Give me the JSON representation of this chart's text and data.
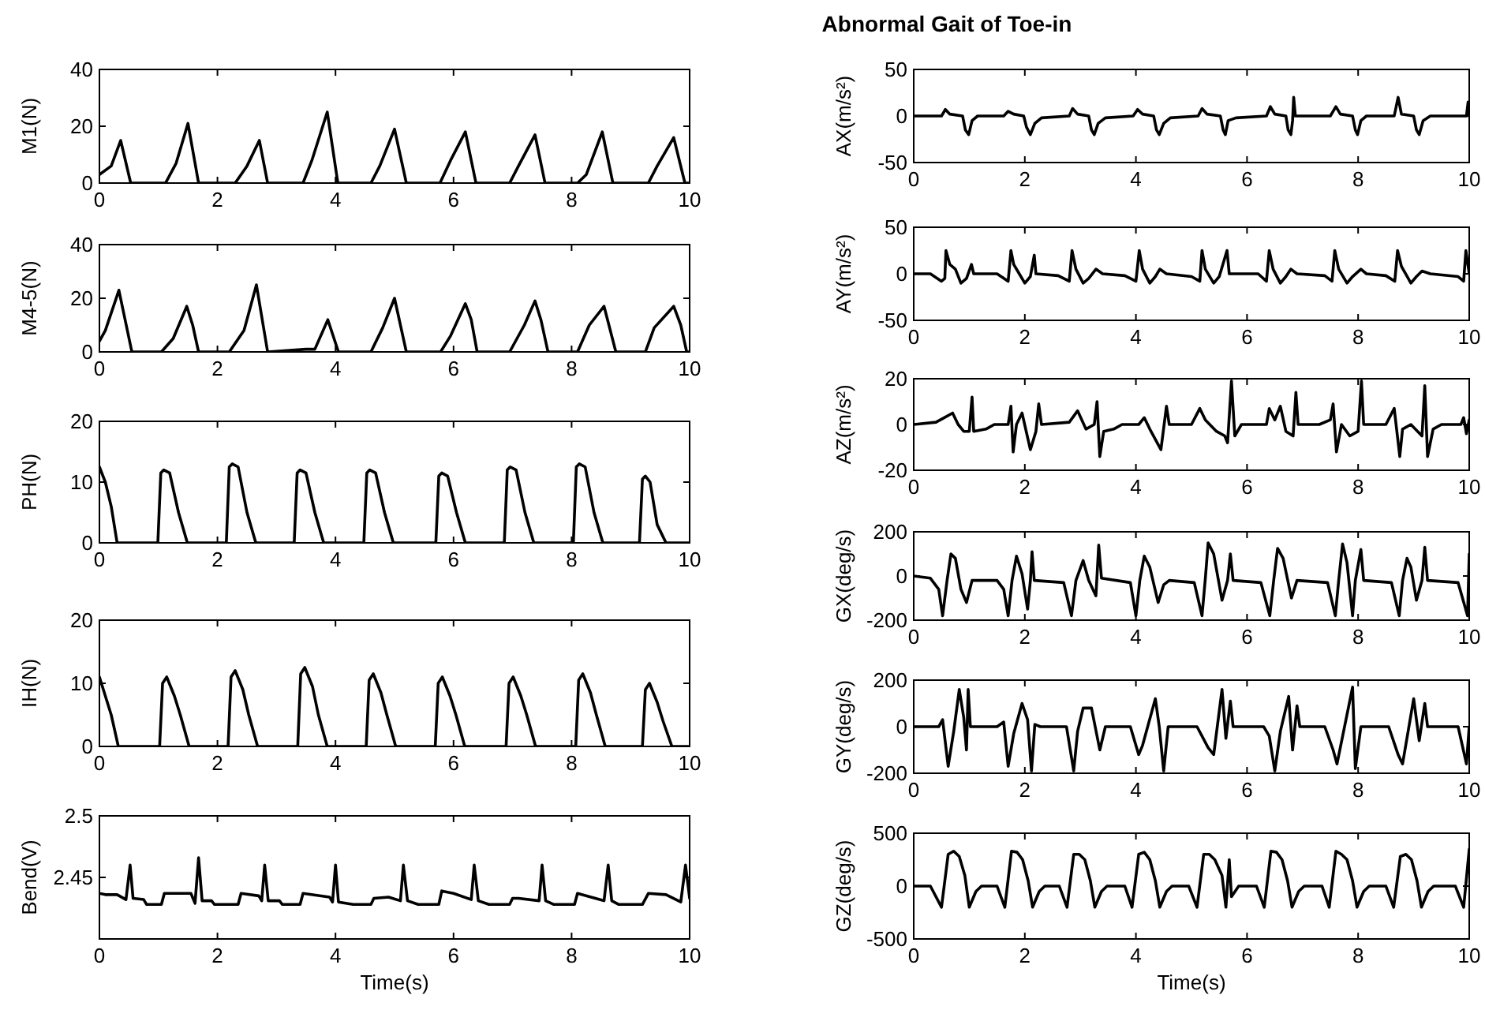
{
  "chart_data": [
    {
      "type": "line",
      "ylabel": "M1(N)",
      "xlim": [
        0,
        10
      ],
      "xticks": [
        0,
        2,
        4,
        6,
        8,
        10
      ],
      "ylim": [
        0,
        40
      ],
      "yticks": [
        0,
        20,
        40
      ],
      "color": "#000000",
      "x": [
        0,
        0.2,
        0.36,
        0.53,
        1.12,
        1.3,
        1.5,
        1.68,
        2.3,
        2.5,
        2.71,
        2.85,
        3.45,
        3.6,
        3.86,
        4.04,
        4.6,
        4.75,
        5.0,
        5.2,
        5.77,
        5.95,
        6.2,
        6.38,
        6.95,
        7.1,
        7.38,
        7.55,
        8.1,
        8.25,
        8.52,
        8.7,
        9.3,
        9.45,
        9.73,
        9.92,
        10
      ],
      "values": [
        3,
        6,
        15,
        0,
        0,
        7,
        21,
        0,
        0,
        6,
        15,
        0,
        0,
        8,
        25,
        0,
        0,
        6,
        19,
        0,
        0,
        8,
        18,
        0,
        0,
        6,
        17,
        0,
        0,
        3,
        18,
        0,
        0,
        6,
        16,
        0,
        0
      ]
    },
    {
      "type": "line",
      "ylabel": "M4-5(N)",
      "xlim": [
        0,
        10
      ],
      "xticks": [
        0,
        2,
        4,
        6,
        8,
        10
      ],
      "ylim": [
        0,
        40
      ],
      "yticks": [
        0,
        20,
        40
      ],
      "color": "#000000",
      "x": [
        0,
        0.1,
        0.33,
        0.55,
        1.05,
        1.25,
        1.48,
        1.58,
        1.68,
        2.2,
        2.45,
        2.66,
        2.85,
        3.5,
        3.65,
        3.87,
        4.05,
        4.6,
        4.8,
        5.0,
        5.2,
        5.78,
        5.95,
        6.2,
        6.3,
        6.4,
        6.95,
        7.2,
        7.38,
        7.48,
        7.6,
        8.1,
        8.3,
        8.55,
        8.75,
        9.25,
        9.4,
        9.73,
        9.85,
        9.95,
        10
      ],
      "values": [
        4,
        8,
        23,
        0,
        0,
        5,
        17,
        10,
        0,
        0,
        8,
        25,
        0,
        1,
        1,
        12,
        0,
        0,
        9,
        20,
        0,
        0,
        6,
        18,
        12,
        0,
        0,
        10,
        19,
        12,
        0,
        0,
        10,
        17,
        0,
        0,
        9,
        17,
        10,
        0,
        0
      ]
    },
    {
      "type": "line",
      "ylabel": "PH(N)",
      "xlim": [
        0,
        10
      ],
      "xticks": [
        0,
        2,
        4,
        6,
        8,
        10
      ],
      "ylim": [
        0,
        20
      ],
      "yticks": [
        0,
        10,
        20
      ],
      "color": "#000000",
      "x": [
        0,
        0.1,
        0.2,
        0.3,
        0.99,
        1.04,
        1.09,
        1.19,
        1.34,
        1.49,
        2.15,
        2.2,
        2.25,
        2.35,
        2.5,
        2.65,
        3.3,
        3.35,
        3.4,
        3.5,
        3.65,
        3.8,
        4.48,
        4.53,
        4.58,
        4.68,
        4.83,
        4.98,
        5.7,
        5.75,
        5.8,
        5.9,
        6.05,
        6.2,
        6.86,
        6.91,
        6.96,
        7.06,
        7.21,
        7.36,
        8.03,
        8.08,
        8.13,
        8.23,
        8.38,
        8.53,
        9.15,
        9.2,
        9.25,
        9.33,
        9.45,
        9.6,
        10
      ],
      "values": [
        12.5,
        10,
        6,
        0,
        0,
        11.5,
        12,
        11.5,
        5,
        0,
        0,
        12.5,
        13,
        12.5,
        5,
        0,
        0,
        11.5,
        12,
        11.5,
        5,
        0,
        0,
        11.5,
        12,
        11.5,
        5,
        0,
        0,
        11,
        11.5,
        11,
        5,
        0,
        0,
        12,
        12.5,
        12,
        5,
        0,
        0,
        12.5,
        13,
        12.5,
        5,
        0,
        0,
        10.5,
        11,
        10,
        3,
        0,
        0
      ]
    },
    {
      "type": "line",
      "ylabel": "IH(N)",
      "xlim": [
        0,
        10
      ],
      "xticks": [
        0,
        2,
        4,
        6,
        8,
        10
      ],
      "ylim": [
        0,
        20
      ],
      "yticks": [
        0,
        10,
        20
      ],
      "color": "#000000",
      "x": [
        0,
        0.1,
        0.2,
        0.32,
        1.02,
        1.07,
        1.14,
        1.27,
        1.37,
        1.52,
        2.18,
        2.23,
        2.3,
        2.43,
        2.53,
        2.68,
        3.36,
        3.41,
        3.48,
        3.61,
        3.71,
        3.86,
        4.52,
        4.57,
        4.64,
        4.77,
        4.87,
        5.02,
        5.69,
        5.74,
        5.81,
        5.94,
        6.04,
        6.19,
        6.89,
        6.94,
        7.01,
        7.14,
        7.24,
        7.39,
        8.07,
        8.12,
        8.19,
        8.32,
        8.42,
        8.57,
        9.2,
        9.25,
        9.32,
        9.45,
        9.55,
        9.7,
        10
      ],
      "values": [
        11,
        8,
        5,
        0,
        0,
        10,
        11,
        8,
        5,
        0,
        0,
        11,
        12,
        9,
        5,
        0,
        0,
        11.5,
        12.5,
        9.5,
        5,
        0,
        0,
        10.5,
        11.5,
        8.5,
        5,
        0,
        0,
        10,
        11,
        8,
        5,
        0,
        0,
        10,
        11,
        8,
        5,
        0,
        0,
        10.5,
        11.5,
        8.5,
        5,
        0,
        0,
        9,
        10,
        7,
        4,
        0,
        0
      ]
    },
    {
      "type": "line",
      "ylabel": "Bend(V)",
      "xlabel": "Time(s)",
      "xlim": [
        0,
        10
      ],
      "xticks": [
        0,
        2,
        4,
        6,
        8,
        10
      ],
      "ylim": [
        2.4,
        2.5
      ],
      "yticks": [
        2.45,
        2.5
      ],
      "color": "#000000",
      "x": [
        0,
        0.1,
        0.3,
        0.45,
        0.52,
        0.57,
        0.75,
        0.8,
        1.05,
        1.1,
        1.55,
        1.62,
        1.68,
        1.74,
        1.9,
        1.95,
        2.35,
        2.4,
        2.7,
        2.75,
        2.8,
        2.86,
        3.05,
        3.1,
        3.4,
        3.45,
        3.9,
        3.95,
        4.0,
        4.05,
        4.3,
        4.6,
        4.65,
        4.9,
        5.1,
        5.15,
        5.22,
        5.4,
        5.75,
        5.8,
        6.0,
        6.3,
        6.35,
        6.42,
        6.6,
        6.95,
        7.0,
        7.1,
        7.45,
        7.5,
        7.56,
        7.7,
        8.05,
        8.1,
        8.55,
        8.62,
        8.68,
        8.8,
        9.2,
        9.3,
        9.6,
        9.85,
        9.93,
        10
      ],
      "values": [
        2.437,
        2.436,
        2.436,
        2.432,
        2.46,
        2.433,
        2.432,
        2.428,
        2.428,
        2.437,
        2.437,
        2.429,
        2.466,
        2.431,
        2.431,
        2.428,
        2.428,
        2.437,
        2.435,
        2.431,
        2.46,
        2.431,
        2.431,
        2.428,
        2.428,
        2.437,
        2.434,
        2.43,
        2.46,
        2.43,
        2.428,
        2.428,
        2.433,
        2.434,
        2.431,
        2.46,
        2.431,
        2.428,
        2.428,
        2.439,
        2.437,
        2.432,
        2.46,
        2.431,
        2.428,
        2.428,
        2.433,
        2.433,
        2.431,
        2.46,
        2.431,
        2.428,
        2.428,
        2.437,
        2.431,
        2.46,
        2.431,
        2.428,
        2.428,
        2.437,
        2.436,
        2.43,
        2.46,
        2.433
      ]
    },
    {
      "type": "line",
      "title": "Abnormal Gait of Toe-in",
      "ylabel": "AX(m/s²)",
      "xlim": [
        0,
        10
      ],
      "xticks": [
        0,
        2,
        4,
        6,
        8,
        10
      ],
      "ylim": [
        -50,
        50
      ],
      "yticks": [
        -50,
        0,
        50
      ],
      "color": "#000000",
      "x": [
        0,
        0.5,
        0.57,
        0.65,
        0.88,
        0.93,
        0.99,
        1.05,
        1.15,
        1.62,
        1.7,
        1.8,
        1.98,
        2.03,
        2.1,
        2.18,
        2.3,
        2.8,
        2.86,
        2.95,
        3.15,
        3.2,
        3.25,
        3.32,
        3.45,
        3.95,
        4.03,
        4.12,
        4.32,
        4.37,
        4.42,
        4.5,
        4.62,
        5.12,
        5.19,
        5.28,
        5.52,
        5.57,
        5.61,
        5.66,
        5.8,
        6.35,
        6.42,
        6.5,
        6.7,
        6.74,
        6.79,
        6.82,
        6.84,
        6.87,
        7.5,
        7.6,
        7.68,
        7.9,
        7.95,
        7.99,
        8.05,
        8.15,
        8.65,
        8.72,
        8.78,
        9.0,
        9.05,
        9.1,
        9.17,
        9.3,
        9.95,
        9.98,
        10
      ],
      "values": [
        0,
        0,
        7,
        2,
        0,
        -15,
        -20,
        -5,
        0,
        0,
        5,
        2,
        0,
        -12,
        -20,
        -8,
        -2,
        0,
        8,
        2,
        0,
        -15,
        -20,
        -8,
        -2,
        0,
        7,
        2,
        0,
        -15,
        -20,
        -8,
        -2,
        0,
        8,
        2,
        0,
        -15,
        -20,
        -5,
        -2,
        0,
        10,
        2,
        0,
        -15,
        -20,
        -5,
        20,
        0,
        0,
        10,
        2,
        0,
        -15,
        -20,
        -5,
        0,
        0,
        20,
        2,
        0,
        -15,
        -20,
        -5,
        0,
        0,
        15,
        0
      ]
    },
    {
      "type": "line",
      "ylabel": "AY(m/s²)",
      "xlim": [
        0,
        10
      ],
      "xticks": [
        0,
        2,
        4,
        6,
        8,
        10
      ],
      "ylim": [
        -50,
        50
      ],
      "yticks": [
        -50,
        0,
        50
      ],
      "color": "#000000",
      "x": [
        0,
        0.3,
        0.5,
        0.56,
        0.58,
        0.65,
        0.75,
        0.85,
        0.95,
        1.04,
        1.08,
        1.5,
        1.7,
        1.75,
        1.8,
        1.9,
        2.0,
        2.1,
        2.17,
        2.2,
        2.6,
        2.8,
        2.85,
        2.92,
        3.05,
        3.15,
        3.28,
        3.4,
        3.8,
        4.0,
        4.06,
        4.12,
        4.25,
        4.35,
        4.43,
        4.55,
        5.0,
        5.15,
        5.19,
        5.25,
        5.4,
        5.5,
        5.64,
        5.68,
        6.2,
        6.35,
        6.4,
        6.47,
        6.6,
        6.7,
        6.79,
        6.9,
        7.4,
        7.53,
        7.58,
        7.65,
        7.8,
        7.9,
        8.05,
        8.15,
        8.5,
        8.66,
        8.71,
        8.78,
        8.95,
        9.05,
        9.15,
        9.3,
        9.8,
        9.9,
        9.94,
        10
      ],
      "values": [
        0,
        0,
        -8,
        -5,
        25,
        10,
        5,
        -10,
        -5,
        10,
        0,
        0,
        -8,
        25,
        10,
        0,
        -10,
        -3,
        20,
        0,
        -2,
        -8,
        25,
        5,
        -10,
        -5,
        5,
        0,
        -2,
        -8,
        25,
        5,
        -10,
        -3,
        5,
        0,
        -3,
        -8,
        25,
        5,
        -10,
        -3,
        25,
        0,
        0,
        -8,
        25,
        5,
        -10,
        -3,
        5,
        0,
        -2,
        -8,
        25,
        5,
        -10,
        -3,
        5,
        0,
        -2,
        -8,
        25,
        8,
        -10,
        -3,
        3,
        0,
        -3,
        -8,
        25,
        0
      ]
    },
    {
      "type": "line",
      "ylabel": "AZ(m/s²)",
      "xlim": [
        0,
        10
      ],
      "xticks": [
        0,
        2,
        4,
        6,
        8,
        10
      ],
      "ylim": [
        -20,
        20
      ],
      "yticks": [
        -20,
        0,
        20
      ],
      "color": "#000000",
      "x": [
        0,
        0.4,
        0.55,
        0.7,
        0.8,
        0.9,
        1.0,
        1.05,
        1.08,
        1.3,
        1.45,
        1.7,
        1.75,
        1.79,
        1.85,
        1.95,
        2.1,
        2.2,
        2.25,
        2.3,
        2.8,
        2.95,
        3.1,
        3.25,
        3.3,
        3.35,
        3.42,
        3.6,
        3.75,
        4.05,
        4.15,
        4.25,
        4.45,
        4.55,
        4.6,
        5.0,
        5.15,
        5.25,
        5.45,
        5.6,
        5.65,
        5.72,
        5.78,
        5.9,
        6.35,
        6.4,
        6.5,
        6.6,
        6.7,
        6.83,
        6.88,
        6.92,
        7.3,
        7.5,
        7.55,
        7.61,
        7.7,
        7.85,
        8.0,
        8.06,
        8.1,
        8.5,
        8.65,
        8.75,
        8.8,
        8.95,
        9.15,
        9.2,
        9.25,
        9.35,
        9.5,
        9.85,
        9.9,
        9.95,
        10
      ],
      "values": [
        0,
        1,
        3,
        5,
        0,
        -3,
        -3,
        12,
        -3,
        -2,
        0,
        0,
        8,
        -12,
        0,
        5,
        -11,
        -3,
        9,
        0,
        1,
        6,
        -2,
        0,
        10,
        -14,
        -3,
        -2,
        0,
        0,
        3,
        -2,
        -11,
        8,
        0,
        0,
        7,
        2,
        -3,
        -5,
        -8,
        19,
        -5,
        0,
        0,
        7,
        2,
        8,
        -3,
        -5,
        14,
        0,
        0,
        2,
        9,
        -12,
        0,
        -5,
        -3,
        19,
        0,
        0,
        7,
        -14,
        -2,
        0,
        -5,
        17,
        -14,
        -2,
        0,
        0,
        3,
        -4,
        2
      ]
    },
    {
      "type": "line",
      "ylabel": "GX(deg/s)",
      "xlim": [
        0,
        10
      ],
      "xticks": [
        0,
        2,
        4,
        6,
        8,
        10
      ],
      "ylim": [
        -200,
        200
      ],
      "yticks": [
        -200,
        0,
        200
      ],
      "color": "#000000",
      "x": [
        0,
        0.3,
        0.45,
        0.52,
        0.6,
        0.67,
        0.75,
        0.85,
        0.95,
        1.05,
        1.5,
        1.62,
        1.7,
        1.77,
        1.85,
        1.95,
        2.05,
        2.1,
        2.13,
        2.17,
        2.7,
        2.84,
        2.92,
        3.05,
        3.15,
        3.28,
        3.33,
        3.38,
        3.9,
        4.0,
        4.07,
        4.15,
        4.25,
        4.4,
        4.5,
        4.6,
        5.05,
        5.19,
        5.25,
        5.3,
        5.4,
        5.55,
        5.65,
        5.7,
        5.75,
        6.25,
        6.41,
        6.48,
        6.55,
        6.65,
        6.8,
        6.9,
        7.45,
        7.59,
        7.65,
        7.72,
        7.8,
        7.9,
        7.95,
        8.05,
        8.1,
        8.6,
        8.74,
        8.8,
        8.88,
        8.95,
        9.05,
        9.15,
        9.2,
        9.25,
        9.8,
        9.97,
        10
      ],
      "values": [
        0,
        -10,
        -60,
        -180,
        -20,
        100,
        80,
        -60,
        -120,
        -20,
        -20,
        -60,
        -180,
        -20,
        90,
        10,
        -150,
        -20,
        110,
        -20,
        -30,
        -180,
        -20,
        70,
        -20,
        -90,
        140,
        -10,
        -30,
        -180,
        -20,
        90,
        40,
        -120,
        -40,
        -20,
        -30,
        -180,
        -10,
        150,
        100,
        -110,
        -20,
        100,
        -20,
        -30,
        -180,
        -20,
        125,
        80,
        -100,
        -20,
        -30,
        -180,
        -20,
        145,
        60,
        -180,
        -20,
        120,
        -20,
        -30,
        -180,
        -20,
        80,
        40,
        -110,
        -20,
        130,
        -20,
        -30,
        -180,
        100
      ]
    },
    {
      "type": "line",
      "ylabel": "GY(deg/s)",
      "xlim": [
        0,
        10
      ],
      "xticks": [
        0,
        2,
        4,
        6,
        8,
        10
      ],
      "ylim": [
        -200,
        200
      ],
      "yticks": [
        -200,
        0,
        200
      ],
      "color": "#000000",
      "x": [
        0,
        0.45,
        0.52,
        0.62,
        0.72,
        0.82,
        0.9,
        0.95,
        0.98,
        1.02,
        1.5,
        1.62,
        1.7,
        1.8,
        1.95,
        2.05,
        2.12,
        2.18,
        2.28,
        2.75,
        2.88,
        2.95,
        3.05,
        3.2,
        3.35,
        3.45,
        3.9,
        4.05,
        4.12,
        4.35,
        4.42,
        4.5,
        4.58,
        5.1,
        5.3,
        5.4,
        5.55,
        5.62,
        5.7,
        5.75,
        6.3,
        6.4,
        6.5,
        6.6,
        6.75,
        6.82,
        6.9,
        6.95,
        7.4,
        7.55,
        7.62,
        7.9,
        7.95,
        8.05,
        8.55,
        8.72,
        8.8,
        9.0,
        9.1,
        9.2,
        9.25,
        9.8,
        9.95,
        10
      ],
      "values": [
        0,
        0,
        30,
        -170,
        -20,
        160,
        40,
        -100,
        160,
        0,
        0,
        20,
        -170,
        -30,
        100,
        30,
        -190,
        10,
        0,
        0,
        -190,
        -20,
        80,
        80,
        -100,
        0,
        0,
        -120,
        -80,
        120,
        0,
        -190,
        0,
        0,
        -90,
        -120,
        160,
        -50,
        110,
        0,
        0,
        -40,
        -190,
        -20,
        130,
        -100,
        90,
        0,
        0,
        -100,
        -160,
        170,
        -180,
        0,
        0,
        -120,
        -160,
        120,
        -60,
        100,
        0,
        0,
        -160,
        0
      ]
    },
    {
      "type": "line",
      "ylabel": "GZ(deg/s)",
      "xlabel": "Time(s)",
      "xlim": [
        0,
        10
      ],
      "xticks": [
        0,
        2,
        4,
        6,
        8,
        10
      ],
      "ylim": [
        -500,
        500
      ],
      "yticks": [
        -500,
        0,
        500
      ],
      "color": "#000000",
      "x": [
        0,
        0.3,
        0.5,
        0.62,
        0.72,
        0.82,
        0.92,
        1.0,
        1.12,
        1.22,
        1.5,
        1.64,
        1.76,
        1.86,
        1.96,
        2.06,
        2.14,
        2.26,
        2.36,
        2.62,
        2.76,
        2.88,
        2.98,
        3.08,
        3.18,
        3.26,
        3.38,
        3.48,
        3.8,
        3.93,
        4.05,
        4.15,
        4.25,
        4.35,
        4.43,
        4.55,
        4.65,
        4.95,
        5.1,
        5.22,
        5.32,
        5.42,
        5.55,
        5.62,
        5.68,
        5.72,
        5.85,
        6.17,
        6.31,
        6.43,
        6.53,
        6.63,
        6.73,
        6.81,
        6.93,
        7.03,
        7.35,
        7.48,
        7.6,
        7.7,
        7.8,
        7.9,
        7.98,
        8.1,
        8.2,
        8.5,
        8.64,
        8.76,
        8.86,
        8.96,
        9.06,
        9.14,
        9.26,
        9.36,
        9.75,
        9.9,
        10
      ],
      "values": [
        0,
        0,
        -200,
        300,
        330,
        280,
        100,
        -200,
        -50,
        0,
        0,
        -200,
        330,
        320,
        250,
        50,
        -200,
        -50,
        0,
        0,
        -200,
        300,
        300,
        250,
        50,
        -200,
        -50,
        0,
        0,
        -200,
        300,
        320,
        250,
        50,
        -200,
        -50,
        0,
        0,
        -200,
        300,
        300,
        250,
        100,
        -200,
        250,
        -100,
        0,
        0,
        -200,
        330,
        320,
        250,
        50,
        -200,
        -50,
        0,
        0,
        -200,
        330,
        300,
        250,
        50,
        -200,
        -50,
        0,
        0,
        -200,
        280,
        300,
        250,
        50,
        -200,
        -50,
        0,
        0,
        -200,
        350
      ]
    }
  ]
}
